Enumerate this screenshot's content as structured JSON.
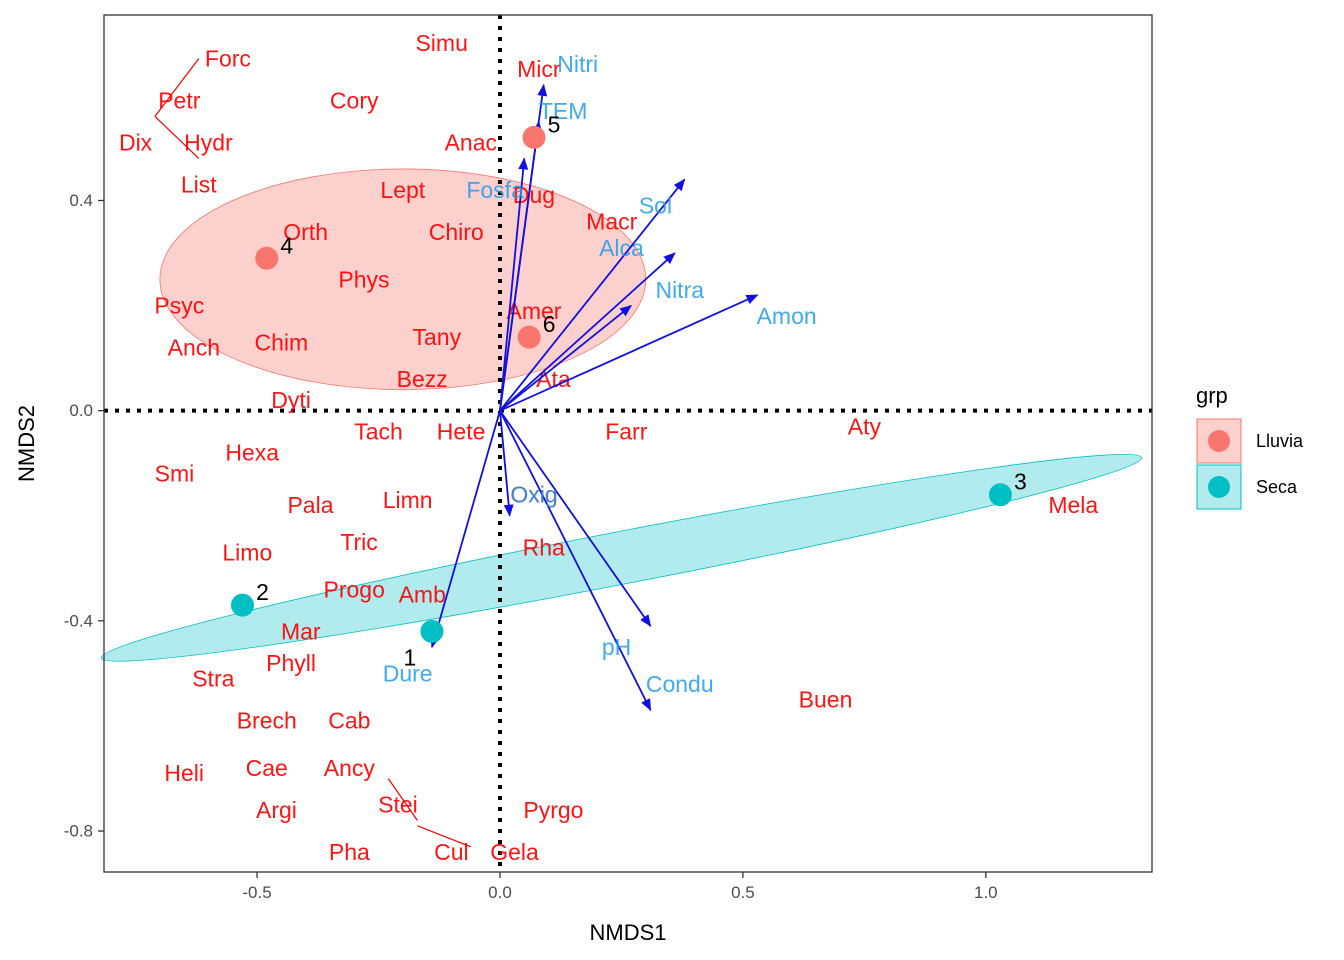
{
  "chart_data": {
    "type": "scatter",
    "xlabel": "NMDS1",
    "ylabel": "NMDS2",
    "xlim": [
      -0.815,
      1.342
    ],
    "ylim": [
      -0.878,
      0.753
    ],
    "xticks": [
      -0.5,
      0.0,
      0.5,
      1.0
    ],
    "xtick_labels": [
      "-0.5",
      "0.0",
      "0.5",
      "1.0"
    ],
    "yticks": [
      -0.8,
      -0.4,
      0.0,
      0.4
    ],
    "ytick_labels": [
      "-0.8",
      "-0.4",
      "0.0",
      "0.4"
    ],
    "grid": false,
    "legend": {
      "title": "grp",
      "placement": "right",
      "entries": [
        {
          "name": "Lluvia",
          "color": "#f8766d"
        },
        {
          "name": "Seca",
          "color": "#00bfc4"
        }
      ]
    },
    "colors": {
      "species": "#ff0000",
      "env_label": "#1e9bef",
      "arrow": "#1010e0",
      "lluvia": "#f8766d",
      "seca": "#00bfc4",
      "lluvia_fill": "#fcd0cc",
      "seca_fill": "#b2ebed"
    },
    "sites": [
      {
        "label": "1",
        "grp": "Seca",
        "x": -0.14,
        "y": -0.42
      },
      {
        "label": "2",
        "grp": "Seca",
        "x": -0.53,
        "y": -0.37
      },
      {
        "label": "3",
        "grp": "Seca",
        "x": 1.03,
        "y": -0.16
      },
      {
        "label": "4",
        "grp": "Lluvia",
        "x": -0.48,
        "y": 0.29
      },
      {
        "label": "5",
        "grp": "Lluvia",
        "x": 0.07,
        "y": 0.52
      },
      {
        "label": "6",
        "grp": "Lluvia",
        "x": 0.06,
        "y": 0.14
      }
    ],
    "ellipses": [
      {
        "grp": "Lluvia",
        "cx": -0.2,
        "cy": 0.25,
        "rx": 0.5,
        "ry": 0.21,
        "angle_deg": 0
      },
      {
        "grp": "Seca",
        "cx": 0.25,
        "cy": -0.28,
        "rx": 1.09,
        "ry": 0.05,
        "angle_deg": 10.9
      }
    ],
    "species": [
      {
        "name": "Simu",
        "x": -0.12,
        "y": 0.7
      },
      {
        "name": "Micr",
        "x": 0.08,
        "y": 0.65
      },
      {
        "name": "Forc",
        "x": -0.56,
        "y": 0.67
      },
      {
        "name": "Petr",
        "x": -0.66,
        "y": 0.59
      },
      {
        "name": "Cory",
        "x": -0.3,
        "y": 0.59
      },
      {
        "name": "Dix",
        "x": -0.75,
        "y": 0.51
      },
      {
        "name": "Hydr",
        "x": -0.6,
        "y": 0.51
      },
      {
        "name": "List",
        "x": -0.62,
        "y": 0.43
      },
      {
        "name": "Anac",
        "x": -0.06,
        "y": 0.51
      },
      {
        "name": "Lept",
        "x": -0.2,
        "y": 0.42
      },
      {
        "name": "Dug",
        "x": 0.07,
        "y": 0.41
      },
      {
        "name": "Orth",
        "x": -0.4,
        "y": 0.34
      },
      {
        "name": "Chiro",
        "x": -0.09,
        "y": 0.34
      },
      {
        "name": "Macr",
        "x": 0.23,
        "y": 0.36
      },
      {
        "name": "Phys",
        "x": -0.28,
        "y": 0.25
      },
      {
        "name": "Psyc",
        "x": -0.66,
        "y": 0.2
      },
      {
        "name": "Amer",
        "x": 0.07,
        "y": 0.19
      },
      {
        "name": "Anch",
        "x": -0.63,
        "y": 0.12
      },
      {
        "name": "Chim",
        "x": -0.45,
        "y": 0.13
      },
      {
        "name": "Tany",
        "x": -0.13,
        "y": 0.14
      },
      {
        "name": "Bezz",
        "x": -0.16,
        "y": 0.06
      },
      {
        "name": "Ata",
        "x": 0.11,
        "y": 0.06
      },
      {
        "name": "Dyti",
        "x": -0.43,
        "y": 0.02
      },
      {
        "name": "Tach",
        "x": -0.25,
        "y": -0.04
      },
      {
        "name": "Hete",
        "x": -0.08,
        "y": -0.04
      },
      {
        "name": "Farr",
        "x": 0.26,
        "y": -0.04
      },
      {
        "name": "Aty",
        "x": 0.75,
        "y": -0.03
      },
      {
        "name": "Hexa",
        "x": -0.51,
        "y": -0.08
      },
      {
        "name": "Smi",
        "x": -0.67,
        "y": -0.12
      },
      {
        "name": "Pala",
        "x": -0.39,
        "y": -0.18
      },
      {
        "name": "Limn",
        "x": -0.19,
        "y": -0.17
      },
      {
        "name": "Oxig",
        "x": 0.07,
        "y": -0.16
      },
      {
        "name": "Mela",
        "x": 1.18,
        "y": -0.18
      },
      {
        "name": "Tric",
        "x": -0.29,
        "y": -0.25
      },
      {
        "name": "Rha",
        "x": 0.09,
        "y": -0.26
      },
      {
        "name": "Limo",
        "x": -0.52,
        "y": -0.27
      },
      {
        "name": "Progo",
        "x": -0.3,
        "y": -0.34
      },
      {
        "name": "Amb",
        "x": -0.16,
        "y": -0.35
      },
      {
        "name": "Mar",
        "x": -0.41,
        "y": -0.42
      },
      {
        "name": "Phyll",
        "x": -0.43,
        "y": -0.48
      },
      {
        "name": "Stra",
        "x": -0.59,
        "y": -0.51
      },
      {
        "name": "Buen",
        "x": 0.67,
        "y": -0.55
      },
      {
        "name": "Brech",
        "x": -0.48,
        "y": -0.59
      },
      {
        "name": "Cab",
        "x": -0.31,
        "y": -0.59
      },
      {
        "name": "Cae",
        "x": -0.48,
        "y": -0.68
      },
      {
        "name": "Ancy",
        "x": -0.31,
        "y": -0.68
      },
      {
        "name": "Heli",
        "x": -0.65,
        "y": -0.69
      },
      {
        "name": "Argi",
        "x": -0.46,
        "y": -0.76
      },
      {
        "name": "Stei",
        "x": -0.21,
        "y": -0.75
      },
      {
        "name": "Pyrgo",
        "x": 0.11,
        "y": -0.76
      },
      {
        "name": "Pha",
        "x": -0.31,
        "y": -0.84
      },
      {
        "name": "Cul",
        "x": -0.1,
        "y": -0.84
      },
      {
        "name": "Gela",
        "x": 0.03,
        "y": -0.84
      }
    ],
    "leader_lines": [
      {
        "x1": -0.62,
        "y1": 0.67,
        "x2": -0.71,
        "y2": 0.56
      },
      {
        "x1": -0.71,
        "y1": 0.56,
        "x2": -0.62,
        "y2": 0.48
      },
      {
        "x1": -0.23,
        "y1": -0.7,
        "x2": -0.17,
        "y2": -0.78
      },
      {
        "x1": -0.17,
        "y1": -0.79,
        "x2": -0.06,
        "y2": -0.83
      }
    ],
    "env_vectors": [
      {
        "name": "Nitri",
        "x": 0.09,
        "y": 0.62,
        "label_x": 0.16,
        "label_y": 0.66
      },
      {
        "name": "TEM",
        "x": 0.08,
        "y": 0.55,
        "label_x": 0.13,
        "label_y": 0.57
      },
      {
        "name": "Fosfa",
        "x": 0.05,
        "y": 0.48,
        "label_x": -0.01,
        "label_y": 0.42
      },
      {
        "name": "Sol",
        "x": 0.38,
        "y": 0.44,
        "label_x": 0.32,
        "label_y": 0.39
      },
      {
        "name": "Alca",
        "x": 0.36,
        "y": 0.3,
        "label_x": 0.25,
        "label_y": 0.31
      },
      {
        "name": "Nitra",
        "x": 0.27,
        "y": 0.2,
        "label_x": 0.37,
        "label_y": 0.23
      },
      {
        "name": "Amon",
        "x": 0.53,
        "y": 0.22,
        "label_x": 0.59,
        "label_y": 0.18
      },
      {
        "name": "Oxig",
        "x": 0.02,
        "y": -0.2,
        "label_x": 0.07,
        "label_y": -0.16
      },
      {
        "name": "Dure",
        "x": -0.14,
        "y": -0.45,
        "label_x": -0.19,
        "label_y": -0.5
      },
      {
        "name": "pH",
        "x": 0.31,
        "y": -0.41,
        "label_x": 0.24,
        "label_y": -0.45
      },
      {
        "name": "Condu",
        "x": 0.31,
        "y": -0.57,
        "label_x": 0.37,
        "label_y": -0.52
      }
    ]
  }
}
